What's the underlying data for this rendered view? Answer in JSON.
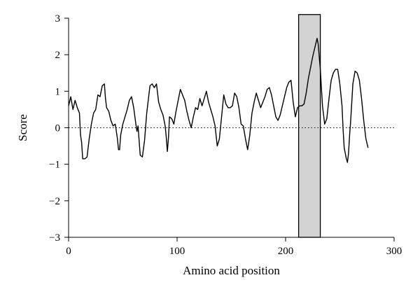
{
  "chart_data": {
    "type": "line",
    "title": "",
    "xlabel": "Amino acid position",
    "ylabel": "Score",
    "xlim": [
      0,
      300
    ],
    "ylim": [
      -3,
      3
    ],
    "x_ticks": [
      0,
      100,
      200,
      300
    ],
    "y_ticks": [
      3,
      2,
      1,
      0,
      -1,
      -2,
      -3
    ],
    "y_tick_labels": [
      "3",
      "2",
      "1",
      "0",
      "−1",
      "−2",
      "−3"
    ],
    "x_tick_labels": [
      "0",
      "100",
      "200",
      "300"
    ],
    "grid": false,
    "reference_line": {
      "y": 0,
      "style": "dotted"
    },
    "highlight_region": {
      "x_start": 212,
      "x_end": 232,
      "y_start": -3,
      "y_end": 3.1
    },
    "series": [
      {
        "points": [
          [
            0,
            0.6
          ],
          [
            2,
            0.85
          ],
          [
            4,
            0.5
          ],
          [
            6,
            0.75
          ],
          [
            8,
            0.55
          ],
          [
            10,
            0.4
          ],
          [
            11,
            -0.2
          ],
          [
            12,
            -0.4
          ],
          [
            13,
            -0.85
          ],
          [
            15,
            -0.85
          ],
          [
            17,
            -0.8
          ],
          [
            19,
            -0.3
          ],
          [
            21,
            0.1
          ],
          [
            23,
            0.4
          ],
          [
            25,
            0.5
          ],
          [
            27,
            0.9
          ],
          [
            29,
            0.85
          ],
          [
            31,
            1.15
          ],
          [
            33,
            1.2
          ],
          [
            34,
            0.8
          ],
          [
            35,
            0.55
          ],
          [
            37,
            0.45
          ],
          [
            39,
            0.2
          ],
          [
            41,
            0.05
          ],
          [
            43,
            0.1
          ],
          [
            45,
            -0.3
          ],
          [
            46,
            -0.6
          ],
          [
            47,
            -0.6
          ],
          [
            48,
            -0.2
          ],
          [
            50,
            0.1
          ],
          [
            52,
            0.3
          ],
          [
            54,
            0.5
          ],
          [
            56,
            0.75
          ],
          [
            58,
            0.85
          ],
          [
            60,
            0.55
          ],
          [
            62,
            0.1
          ],
          [
            63,
            -0.1
          ],
          [
            64,
            0.05
          ],
          [
            65,
            -0.35
          ],
          [
            66,
            -0.75
          ],
          [
            68,
            -0.8
          ],
          [
            70,
            -0.35
          ],
          [
            72,
            0.4
          ],
          [
            74,
            0.9
          ],
          [
            75,
            1.15
          ],
          [
            77,
            1.2
          ],
          [
            79,
            1.1
          ],
          [
            81,
            1.2
          ],
          [
            83,
            0.7
          ],
          [
            85,
            0.5
          ],
          [
            87,
            0.35
          ],
          [
            89,
            0.05
          ],
          [
            90,
            -0.25
          ],
          [
            91,
            -0.65
          ],
          [
            92,
            -0.3
          ],
          [
            93,
            0.3
          ],
          [
            95,
            0.25
          ],
          [
            97,
            0.1
          ],
          [
            99,
            0.45
          ],
          [
            101,
            0.75
          ],
          [
            103,
            1.05
          ],
          [
            105,
            0.9
          ],
          [
            107,
            0.75
          ],
          [
            109,
            0.45
          ],
          [
            111,
            0.2
          ],
          [
            113,
            0.0
          ],
          [
            115,
            0.3
          ],
          [
            117,
            0.55
          ],
          [
            119,
            0.5
          ],
          [
            121,
            0.8
          ],
          [
            123,
            0.6
          ],
          [
            125,
            0.8
          ],
          [
            127,
            1.0
          ],
          [
            129,
            0.7
          ],
          [
            131,
            0.5
          ],
          [
            133,
            0.3
          ],
          [
            135,
            0.05
          ],
          [
            137,
            -0.5
          ],
          [
            139,
            -0.3
          ],
          [
            141,
            0.3
          ],
          [
            143,
            0.9
          ],
          [
            145,
            0.65
          ],
          [
            147,
            0.55
          ],
          [
            149,
            0.55
          ],
          [
            151,
            0.6
          ],
          [
            153,
            0.95
          ],
          [
            155,
            0.85
          ],
          [
            157,
            0.55
          ],
          [
            159,
            0.1
          ],
          [
            161,
            0.05
          ],
          [
            163,
            -0.3
          ],
          [
            165,
            -0.6
          ],
          [
            167,
            -0.2
          ],
          [
            169,
            0.4
          ],
          [
            171,
            0.7
          ],
          [
            173,
            0.95
          ],
          [
            175,
            0.75
          ],
          [
            177,
            0.55
          ],
          [
            179,
            0.7
          ],
          [
            181,
            0.85
          ],
          [
            183,
            1.05
          ],
          [
            185,
            1.1
          ],
          [
            187,
            0.9
          ],
          [
            189,
            0.6
          ],
          [
            191,
            0.3
          ],
          [
            193,
            0.2
          ],
          [
            195,
            0.35
          ],
          [
            197,
            0.6
          ],
          [
            199,
            0.85
          ],
          [
            201,
            1.1
          ],
          [
            203,
            1.25
          ],
          [
            205,
            1.3
          ],
          [
            207,
            0.7
          ],
          [
            209,
            0.3
          ],
          [
            211,
            0.55
          ],
          [
            213,
            0.6
          ],
          [
            215,
            0.6
          ],
          [
            217,
            0.65
          ],
          [
            219,
            0.95
          ],
          [
            221,
            1.35
          ],
          [
            223,
            1.65
          ],
          [
            225,
            1.95
          ],
          [
            227,
            2.2
          ],
          [
            229,
            2.45
          ],
          [
            230,
            2.3
          ],
          [
            232,
            1.6
          ],
          [
            234,
            0.6
          ],
          [
            236,
            0.1
          ],
          [
            238,
            0.25
          ],
          [
            240,
            0.8
          ],
          [
            242,
            1.3
          ],
          [
            244,
            1.5
          ],
          [
            246,
            1.6
          ],
          [
            248,
            1.6
          ],
          [
            250,
            1.2
          ],
          [
            252,
            0.6
          ],
          [
            253,
            -0.05
          ],
          [
            254,
            -0.55
          ],
          [
            256,
            -0.85
          ],
          [
            257,
            -0.95
          ],
          [
            258,
            -0.7
          ],
          [
            259,
            -0.2
          ],
          [
            260,
            0.2
          ],
          [
            262,
            1.2
          ],
          [
            264,
            1.55
          ],
          [
            266,
            1.5
          ],
          [
            268,
            1.3
          ],
          [
            270,
            0.8
          ],
          [
            272,
            0.2
          ],
          [
            274,
            -0.3
          ],
          [
            276,
            -0.55
          ]
        ]
      }
    ]
  }
}
